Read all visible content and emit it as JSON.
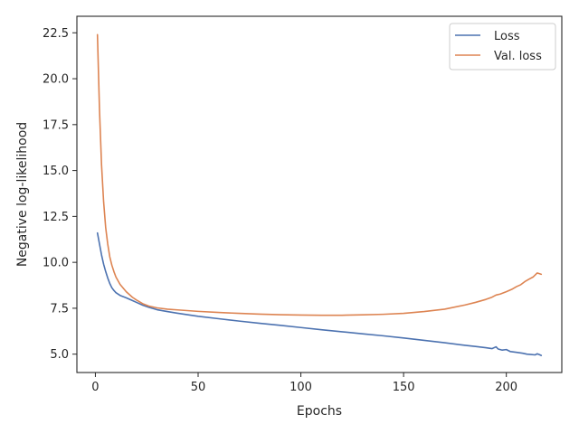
{
  "chart_data": {
    "type": "line",
    "title": "",
    "xlabel": "Epochs",
    "ylabel": "Negative log-likelihood",
    "xlim": [
      -9,
      227
    ],
    "ylim": [
      4.0,
      23.4
    ],
    "xticks": [
      0,
      50,
      100,
      150,
      200
    ],
    "yticks": [
      5.0,
      7.5,
      10.0,
      12.5,
      15.0,
      17.5,
      20.0,
      22.5
    ],
    "ytick_labels": [
      "5.0",
      "7.5",
      "10.0",
      "12.5",
      "15.0",
      "17.5",
      "20.0",
      "22.5"
    ],
    "grid": false,
    "legend": "top-right",
    "series": [
      {
        "name": "Loss",
        "color": "#4c72b0",
        "points": [
          [
            1,
            11.6
          ],
          [
            2,
            11.0
          ],
          [
            3,
            10.4
          ],
          [
            4,
            9.9
          ],
          [
            5,
            9.5
          ],
          [
            6,
            9.15
          ],
          [
            7,
            8.85
          ],
          [
            8,
            8.62
          ],
          [
            9,
            8.47
          ],
          [
            10,
            8.35
          ],
          [
            12,
            8.2
          ],
          [
            15,
            8.07
          ],
          [
            18,
            7.92
          ],
          [
            20,
            7.82
          ],
          [
            23,
            7.67
          ],
          [
            26,
            7.55
          ],
          [
            30,
            7.42
          ],
          [
            35,
            7.32
          ],
          [
            40,
            7.23
          ],
          [
            50,
            7.06
          ],
          [
            60,
            6.93
          ],
          [
            70,
            6.8
          ],
          [
            80,
            6.68
          ],
          [
            90,
            6.57
          ],
          [
            100,
            6.45
          ],
          [
            110,
            6.33
          ],
          [
            120,
            6.22
          ],
          [
            130,
            6.11
          ],
          [
            140,
            6.0
          ],
          [
            150,
            5.88
          ],
          [
            160,
            5.75
          ],
          [
            170,
            5.62
          ],
          [
            180,
            5.48
          ],
          [
            185,
            5.42
          ],
          [
            190,
            5.35
          ],
          [
            193,
            5.3
          ],
          [
            195,
            5.4
          ],
          [
            196,
            5.28
          ],
          [
            198,
            5.22
          ],
          [
            200,
            5.25
          ],
          [
            202,
            5.14
          ],
          [
            205,
            5.1
          ],
          [
            208,
            5.05
          ],
          [
            210,
            5.0
          ],
          [
            212,
            4.98
          ],
          [
            214,
            4.96
          ],
          [
            215,
            5.02
          ],
          [
            216,
            4.98
          ],
          [
            217,
            4.93
          ]
        ]
      },
      {
        "name": "Val. loss",
        "color": "#dd8452",
        "points": [
          [
            1,
            22.4
          ],
          [
            2,
            18.3
          ],
          [
            3,
            15.3
          ],
          [
            4,
            13.3
          ],
          [
            5,
            11.9
          ],
          [
            6,
            11.0
          ],
          [
            7,
            10.3
          ],
          [
            8,
            9.85
          ],
          [
            9,
            9.5
          ],
          [
            10,
            9.2
          ],
          [
            12,
            8.8
          ],
          [
            15,
            8.4
          ],
          [
            18,
            8.1
          ],
          [
            20,
            7.95
          ],
          [
            23,
            7.75
          ],
          [
            26,
            7.62
          ],
          [
            30,
            7.52
          ],
          [
            35,
            7.45
          ],
          [
            40,
            7.41
          ],
          [
            50,
            7.33
          ],
          [
            60,
            7.27
          ],
          [
            70,
            7.22
          ],
          [
            80,
            7.18
          ],
          [
            90,
            7.15
          ],
          [
            100,
            7.13
          ],
          [
            110,
            7.12
          ],
          [
            120,
            7.12
          ],
          [
            130,
            7.14
          ],
          [
            140,
            7.17
          ],
          [
            150,
            7.22
          ],
          [
            160,
            7.32
          ],
          [
            170,
            7.45
          ],
          [
            180,
            7.68
          ],
          [
            185,
            7.82
          ],
          [
            190,
            7.98
          ],
          [
            193,
            8.1
          ],
          [
            195,
            8.22
          ],
          [
            197,
            8.27
          ],
          [
            200,
            8.4
          ],
          [
            203,
            8.55
          ],
          [
            205,
            8.68
          ],
          [
            207,
            8.78
          ],
          [
            209,
            8.95
          ],
          [
            211,
            9.08
          ],
          [
            213,
            9.2
          ],
          [
            215,
            9.42
          ],
          [
            217,
            9.35
          ]
        ]
      }
    ]
  }
}
